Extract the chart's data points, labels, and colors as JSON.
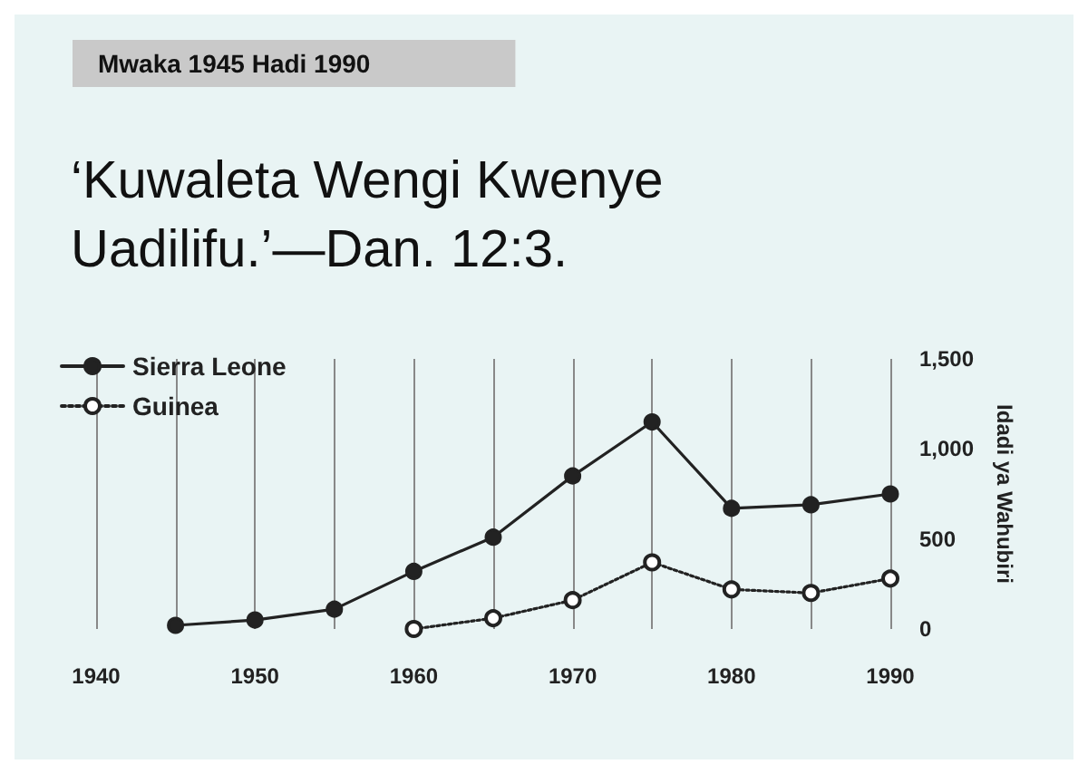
{
  "chart_data": {
    "type": "line",
    "subtitle": "Mwaka 1945 Hadi 1990",
    "title": "‘Kuwaleta Wengi Kwenye Uadilifu.’—Dan. 12:3.",
    "ylabel": "Idadi ya Wahubiri",
    "xlim": [
      1940,
      1990
    ],
    "xticks": [
      1940,
      {
        "value": 1945,
        "label": null
      },
      1950,
      {
        "value": 1955,
        "label": null
      },
      1960,
      {
        "value": 1965,
        "label": null
      },
      1970,
      {
        "value": 1975,
        "label": null
      },
      1980,
      {
        "value": 1985,
        "label": null
      },
      1990
    ],
    "ylim": [
      0,
      1500
    ],
    "yticks": [
      {
        "value": 0,
        "label": "0"
      },
      {
        "value": 500,
        "label": "500"
      },
      {
        "value": 1000,
        "label": "1,000"
      },
      {
        "value": 1500,
        "label": "1,500"
      }
    ],
    "grid": "x",
    "legend": "top left",
    "marker": "circle",
    "series": [
      {
        "name": "Sierra Leone",
        "color": "#222222",
        "line_style": "solid",
        "x": [
          1945,
          1950,
          1955,
          1960,
          1965,
          1970,
          1975,
          1980,
          1985,
          1990
        ],
        "values": [
          20,
          50,
          110,
          320,
          510,
          850,
          1150,
          670,
          690,
          750
        ]
      },
      {
        "name": "Guinea",
        "color": "#222222",
        "line_style": "dotted",
        "x": [
          1960,
          1965,
          1970,
          1975,
          1980,
          1985,
          1990
        ],
        "values": [
          0,
          60,
          160,
          370,
          220,
          200,
          280
        ]
      }
    ]
  }
}
